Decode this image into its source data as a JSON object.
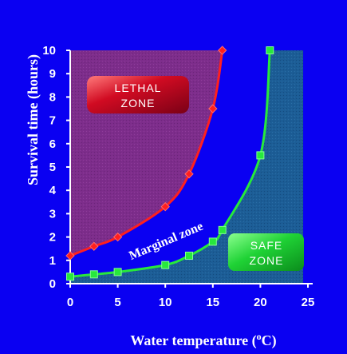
{
  "chart_data": {
    "type": "line",
    "xlabel": "Water temperature (",
    "xlabel_sup": "o",
    "xlabel_suffix": "C)",
    "ylabel": "Survival time (hours)",
    "xlim": [
      0,
      25
    ],
    "ylim": [
      0,
      10
    ],
    "x_ticks": [
      "0",
      "5",
      "10",
      "15",
      "20",
      "25"
    ],
    "y_ticks": [
      "0",
      "1",
      "2",
      "3",
      "4",
      "5",
      "6",
      "7",
      "8",
      "9",
      "10"
    ],
    "series": [
      {
        "marker": "diamond",
        "color": "#ff1f1f",
        "x": [
          0,
          2.5,
          5,
          10,
          12.5,
          15,
          16
        ],
        "y": [
          1.2,
          1.6,
          2.0,
          3.3,
          4.7,
          7.5,
          10.0
        ]
      },
      {
        "marker": "square",
        "color": "#27e83c",
        "x": [
          0,
          2.5,
          5,
          10,
          12.5,
          15,
          16,
          20,
          21
        ],
        "y": [
          0.3,
          0.4,
          0.5,
          0.8,
          1.2,
          1.8,
          2.3,
          5.5,
          10.0
        ]
      }
    ],
    "zones": {
      "lethal_label_line1": "LETHAL",
      "lethal_label_line2": "ZONE",
      "safe_label_line1": "SAFE",
      "safe_label_line2": "ZONE",
      "marginal_label": "Marginal zone"
    },
    "colors": {
      "background": "#0a00f2",
      "lethal_fill": "#7a2a87",
      "safe_fill": "#1f5f93",
      "lethal_badge": "#b50018",
      "safe_badge": "#17d02d",
      "axis": "#ffffff",
      "text": "#ffffff"
    }
  }
}
